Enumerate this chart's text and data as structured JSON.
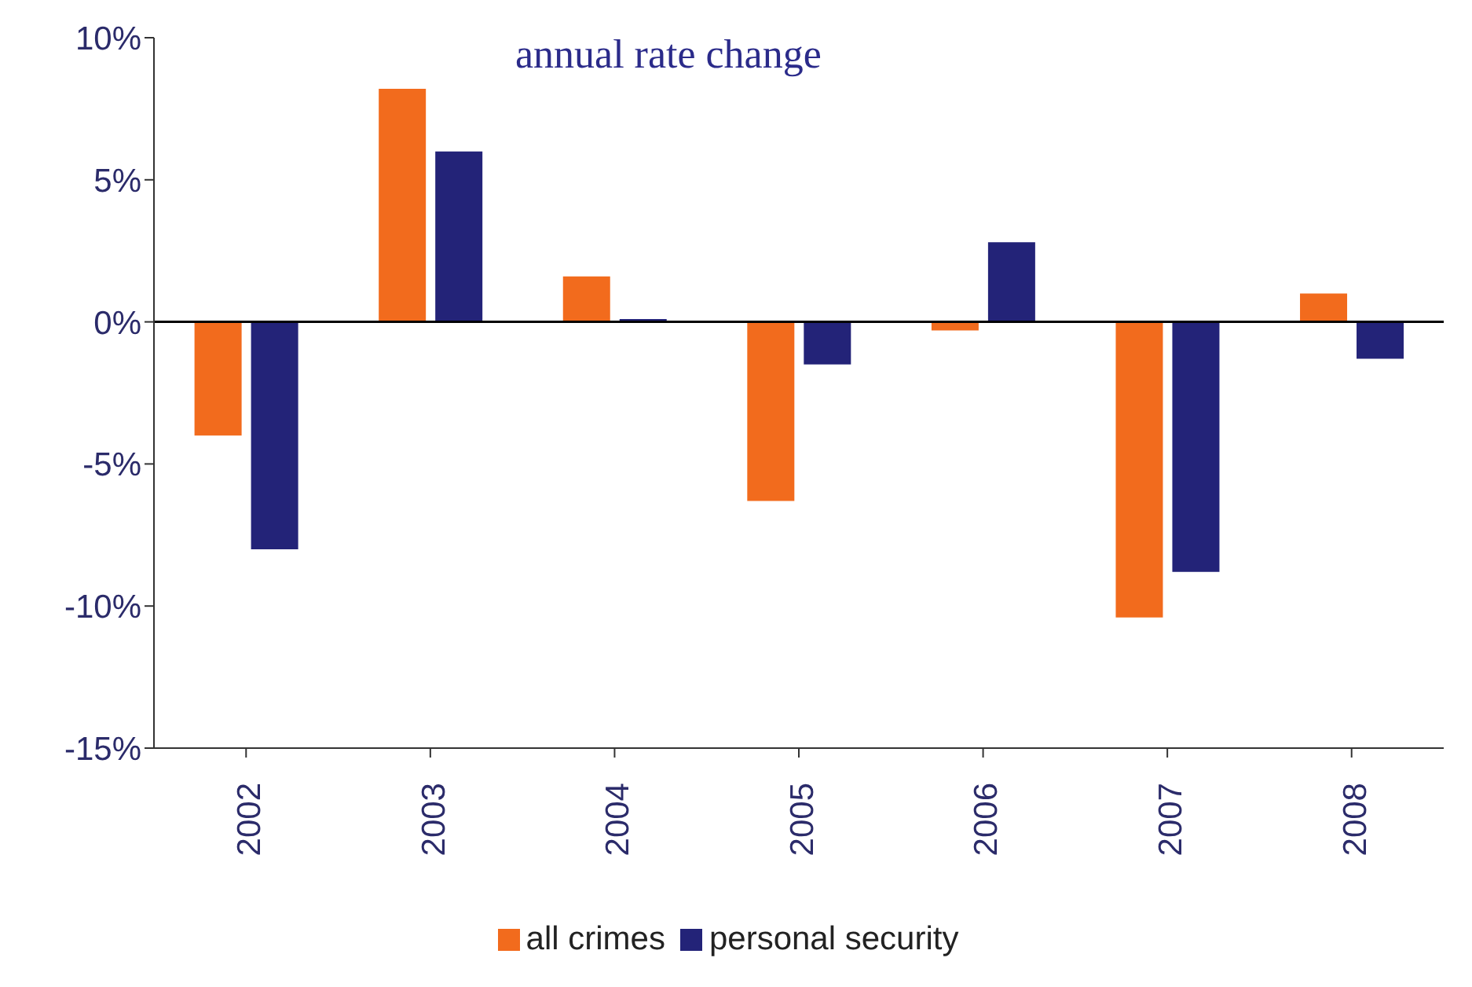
{
  "chart_data": {
    "type": "bar",
    "subtitle": "annual rate change",
    "categories": [
      "2002",
      "2003",
      "2004",
      "2005",
      "2006",
      "2007",
      "2008"
    ],
    "series": [
      {
        "name": "all crimes",
        "color": "#f26b1d",
        "values": [
          -4.0,
          8.2,
          1.6,
          -6.3,
          -0.3,
          -10.4,
          1.0
        ]
      },
      {
        "name": "personal security",
        "color": "#232378",
        "values": [
          -8.0,
          6.0,
          0.1,
          -1.5,
          2.8,
          -8.8,
          -1.3
        ]
      }
    ],
    "ylim": [
      -15,
      10
    ],
    "yticks": [
      {
        "value": -15,
        "label": "-15%"
      },
      {
        "value": -10,
        "label": "-10%"
      },
      {
        "value": -5,
        "label": "-5%"
      },
      {
        "value": 0,
        "label": "0%"
      },
      {
        "value": 5,
        "label": "5%"
      },
      {
        "value": 10,
        "label": "10%"
      }
    ],
    "ref_lines": [
      {
        "axis": "y",
        "value": 0,
        "color": "#000000"
      }
    ],
    "grid": false,
    "legend": "bottom"
  }
}
